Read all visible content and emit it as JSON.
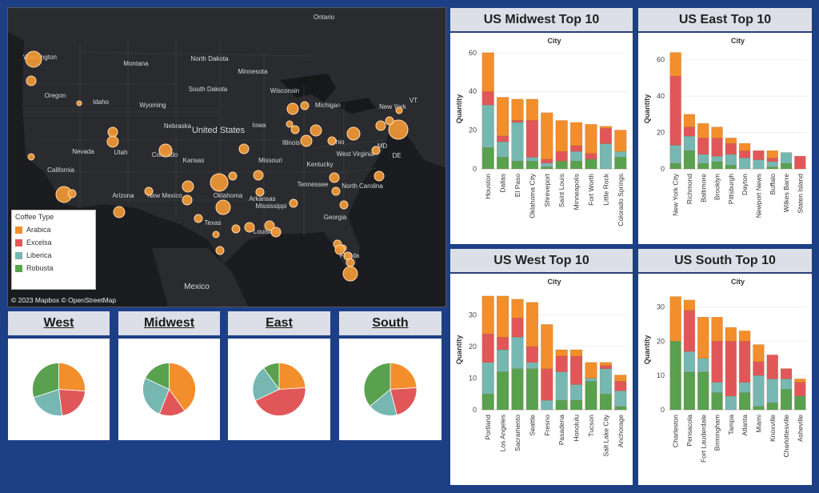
{
  "map": {
    "credit": "© 2023 Mapbox © OpenStreetMap",
    "labels": [
      "Ontario",
      "Washington",
      "Montana",
      "North Dakota",
      "Minnesota",
      "South Dakota",
      "Wisconsin",
      "Michigan",
      "Oregon",
      "Idaho",
      "Wyoming",
      "Iowa",
      "Nebraska",
      "Illinois",
      "Ohio",
      "New York",
      "United States",
      "Nevada",
      "Utah",
      "Colorado",
      "Kansas",
      "Missouri",
      "West Virginia",
      "Kentucky",
      "California",
      "Arizona",
      "New Mexico",
      "Oklahoma",
      "Arkansas",
      "Tennessee",
      "North Carolina",
      "Mississippi",
      "Texas",
      "Louisiana",
      "Georgia",
      "Florida",
      "Mexico",
      "VT",
      "MD",
      "DE"
    ],
    "legend": {
      "title": "Coffee Type",
      "items": [
        {
          "name": "Arabica",
          "color": "#f28e2b"
        },
        {
          "name": "Excelsa",
          "color": "#e15759"
        },
        {
          "name": "Liberica",
          "color": "#76b7b2"
        },
        {
          "name": "Robusta",
          "color": "#59a14f"
        }
      ]
    }
  },
  "regions": [
    {
      "title": "West",
      "slices": [
        0.26,
        0.22,
        0.22,
        0.3
      ]
    },
    {
      "title": "Midwest",
      "slices": [
        0.4,
        0.16,
        0.26,
        0.18
      ]
    },
    {
      "title": "East",
      "slices": [
        0.24,
        0.44,
        0.22,
        0.1
      ]
    },
    {
      "title": "South",
      "slices": [
        0.24,
        0.22,
        0.18,
        0.36
      ]
    }
  ],
  "chart_data": [
    {
      "type": "bar",
      "title": "US Midwest Top 10",
      "xlabel": "City",
      "ylabel": "Quantity",
      "ylim": [
        0,
        62
      ],
      "yticks": [
        0,
        20,
        40,
        60
      ],
      "stacked": true,
      "categories": [
        "Houston",
        "Dallas",
        "El Paso",
        "Oklahoma City",
        "Shreveport",
        "Saint Louis",
        "Minneapolis",
        "Fort Worth",
        "Little Rock",
        "Colorado Springs"
      ],
      "series": [
        {
          "name": "Robusta",
          "color": "#59a14f",
          "values": [
            11,
            6,
            4,
            4,
            1,
            4,
            4,
            5,
            0,
            6
          ]
        },
        {
          "name": "Liberica",
          "color": "#76b7b2",
          "values": [
            22,
            8,
            20,
            2,
            2,
            0,
            5,
            0,
            13,
            3
          ]
        },
        {
          "name": "Excelsa",
          "color": "#e15759",
          "values": [
            7,
            3,
            1,
            19,
            2,
            5,
            3,
            3,
            8,
            0
          ]
        },
        {
          "name": "Arabica",
          "color": "#f28e2b",
          "values": [
            20,
            20,
            11,
            11,
            24,
            16,
            12,
            15,
            1,
            11
          ]
        }
      ]
    },
    {
      "type": "bar",
      "title": "US East Top 10",
      "xlabel": "City",
      "ylabel": "Quantity",
      "ylim": [
        0,
        66
      ],
      "yticks": [
        0,
        20,
        40,
        60
      ],
      "stacked": true,
      "categories": [
        "New York City",
        "Richmond",
        "Baltimore",
        "Brooklyn",
        "Pittsburgh",
        "Dayton",
        "Newport News",
        "Buffalo",
        "Wilkes Barre",
        "Staten Island"
      ],
      "series": [
        {
          "name": "Robusta",
          "color": "#59a14f",
          "values": [
            3,
            10,
            3,
            4,
            2,
            0,
            0,
            1,
            3,
            0
          ]
        },
        {
          "name": "Liberica",
          "color": "#76b7b2",
          "values": [
            10,
            8,
            5,
            3,
            6,
            6,
            5,
            3,
            6,
            0
          ]
        },
        {
          "name": "Excelsa",
          "color": "#e15759",
          "values": [
            38,
            5,
            9,
            10,
            6,
            4,
            5,
            2,
            0,
            7
          ]
        },
        {
          "name": "Arabica",
          "color": "#f28e2b",
          "values": [
            13,
            7,
            8,
            6,
            3,
            4,
            0,
            4,
            0,
            0
          ]
        }
      ]
    },
    {
      "type": "bar",
      "title": "US West Top 10",
      "xlabel": "City",
      "ylabel": "Quantity",
      "ylim": [
        0,
        38
      ],
      "yticks": [
        0,
        10,
        20,
        30
      ],
      "stacked": true,
      "categories": [
        "Portland",
        "Los Angeles",
        "Sacramento",
        "Seattle",
        "Fresno",
        "Pasadena",
        "Honolulu",
        "Tucson",
        "Salt Lake City",
        "Anchorage"
      ],
      "series": [
        {
          "name": "Robusta",
          "color": "#59a14f",
          "values": [
            5,
            12,
            13,
            13,
            0,
            3,
            3,
            9,
            5,
            1
          ]
        },
        {
          "name": "Liberica",
          "color": "#76b7b2",
          "values": [
            10,
            7,
            10,
            2,
            3,
            9,
            5,
            1,
            8,
            5
          ]
        },
        {
          "name": "Excelsa",
          "color": "#e15759",
          "values": [
            9,
            4,
            6,
            5,
            10,
            5,
            9,
            0,
            1,
            3
          ]
        },
        {
          "name": "Arabica",
          "color": "#f28e2b",
          "values": [
            12,
            13,
            6,
            14,
            14,
            2,
            2,
            5,
            1,
            2
          ]
        }
      ]
    },
    {
      "type": "bar",
      "title": "US South Top 10",
      "xlabel": "City",
      "ylabel": "Quantity",
      "ylim": [
        0,
        35
      ],
      "yticks": [
        0,
        10,
        20,
        30
      ],
      "stacked": true,
      "categories": [
        "Charleston",
        "Pensacola",
        "Fort Lauderdale",
        "Birmingham",
        "Tampa",
        "Atlanta",
        "Miami",
        "Knoxville",
        "Charlottesville",
        "Asheville"
      ],
      "series": [
        {
          "name": "Robusta",
          "color": "#59a14f",
          "values": [
            20,
            11,
            11,
            5,
            0,
            5,
            1,
            2,
            6,
            4
          ]
        },
        {
          "name": "Liberica",
          "color": "#76b7b2",
          "values": [
            0,
            6,
            4,
            3,
            4,
            3,
            9,
            7,
            3,
            0
          ]
        },
        {
          "name": "Excelsa",
          "color": "#e15759",
          "values": [
            0,
            12,
            0,
            12,
            16,
            12,
            4,
            7,
            3,
            4
          ]
        },
        {
          "name": "Arabica",
          "color": "#f28e2b",
          "values": [
            13,
            3,
            12,
            7,
            4,
            3,
            5,
            0,
            0,
            1
          ]
        }
      ]
    }
  ]
}
